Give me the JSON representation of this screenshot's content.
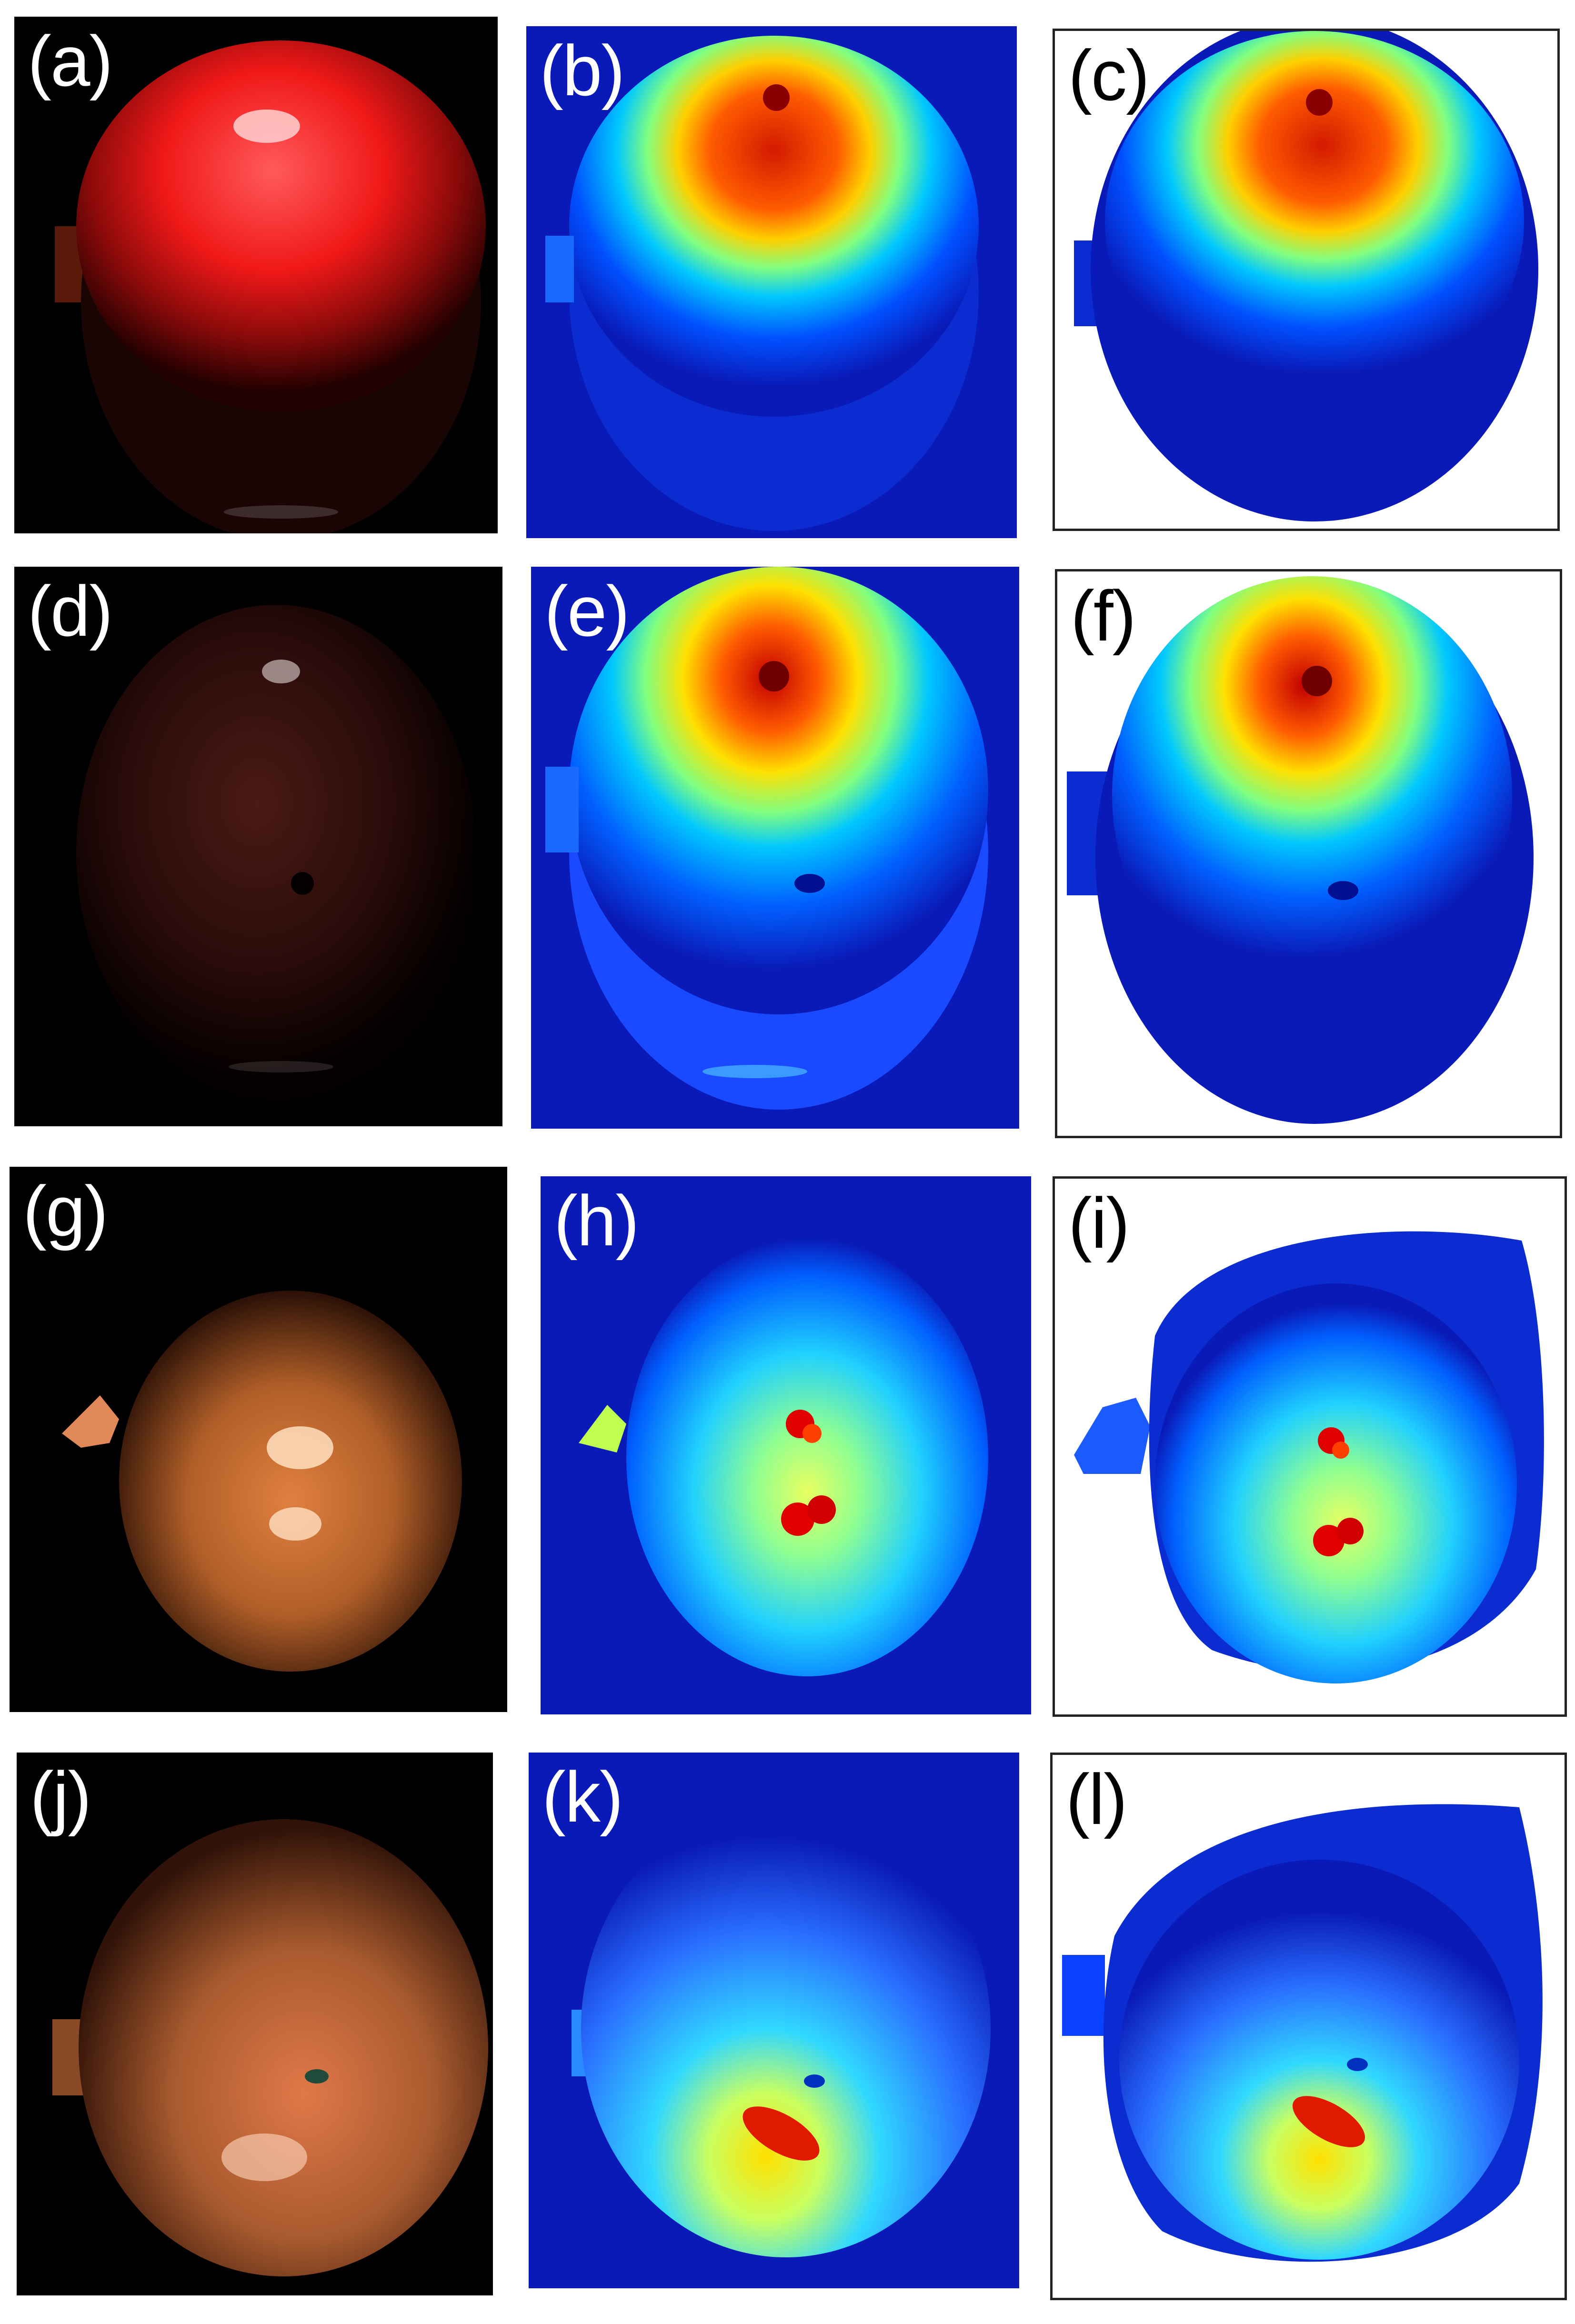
{
  "figure": {
    "panel_labels": [
      "(a)",
      "(b)",
      "(c)",
      "(d)",
      "(e)",
      "(f)",
      "(g)",
      "(h)",
      "(i)",
      "(j)",
      "(k)",
      "(l)"
    ]
  },
  "rows": [
    {
      "photo_label": "(a)",
      "heatmap_label": "(b)",
      "masked_label": "(c)"
    },
    {
      "photo_label": "(d)",
      "heatmap_label": "(e)",
      "masked_label": "(f)"
    },
    {
      "photo_label": "(g)",
      "heatmap_label": "(h)",
      "masked_label": "(i)"
    },
    {
      "photo_label": "(j)",
      "heatmap_label": "(k)",
      "masked_label": "(l)"
    }
  ],
  "colors": {
    "photo_background": "#000000",
    "heatmap_background": "#0a1ab8",
    "colormap": [
      "#00008f",
      "#0030ff",
      "#00c8ff",
      "#80ff80",
      "#ffff00",
      "#ff6a00",
      "#c00000"
    ],
    "masked_background": "#ffffff"
  }
}
